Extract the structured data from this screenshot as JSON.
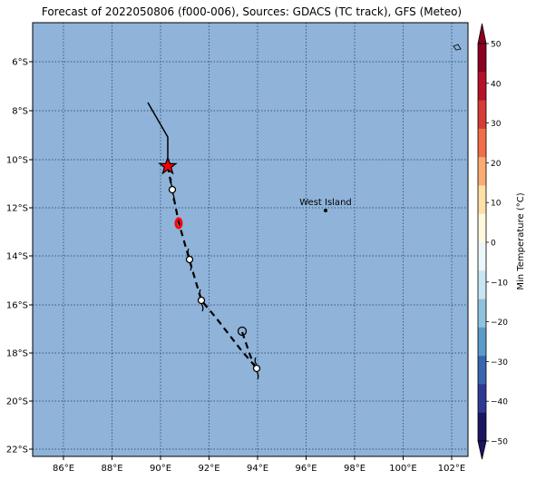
{
  "title": "Forecast of 2022050806 (f000-006), Sources: GDACS (TC track), GFS (Meteo)",
  "map": {
    "ocean_color": "#8fb3d9",
    "grid_style": "dotted",
    "lon_ticks": [
      "86°E",
      "88°E",
      "90°E",
      "92°E",
      "94°E",
      "96°E",
      "98°E",
      "100°E",
      "102°E"
    ],
    "lat_ticks": [
      "6°S",
      "8°S",
      "10°S",
      "12°S",
      "14°S",
      "16°S",
      "18°S",
      "20°S",
      "22°S"
    ],
    "place_label": "West Island",
    "track_color": "#000000",
    "current_position_marker": "red-star",
    "forecast_marker": "cyclone-symbol",
    "highlight_color": "#ff0000"
  },
  "colorbar": {
    "label": "Min Temperature (°C)",
    "tick_labels": [
      "50",
      "40",
      "30",
      "20",
      "10",
      "0",
      "−10",
      "−20",
      "−30",
      "−40",
      "−50"
    ],
    "colors_top_to_bottom": [
      "#8b0020",
      "#b5122a",
      "#d73c34",
      "#f26d4a",
      "#fbab74",
      "#fee0a8",
      "#fff8dc",
      "#ecf7fb",
      "#c7e6f2",
      "#8fc2de",
      "#5b9bca",
      "#3a66ad",
      "#2e3a92",
      "#1a1760"
    ]
  }
}
